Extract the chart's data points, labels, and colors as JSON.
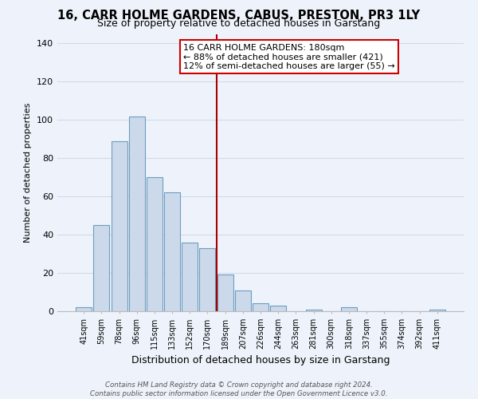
{
  "title": "16, CARR HOLME GARDENS, CABUS, PRESTON, PR3 1LY",
  "subtitle": "Size of property relative to detached houses in Garstang",
  "xlabel": "Distribution of detached houses by size in Garstang",
  "ylabel": "Number of detached properties",
  "bar_labels": [
    "41sqm",
    "59sqm",
    "78sqm",
    "96sqm",
    "115sqm",
    "133sqm",
    "152sqm",
    "170sqm",
    "189sqm",
    "207sqm",
    "226sqm",
    "244sqm",
    "263sqm",
    "281sqm",
    "300sqm",
    "318sqm",
    "337sqm",
    "355sqm",
    "374sqm",
    "392sqm",
    "411sqm"
  ],
  "bar_values": [
    2,
    45,
    89,
    102,
    70,
    62,
    36,
    33,
    19,
    11,
    4,
    3,
    0,
    1,
    0,
    2,
    0,
    0,
    0,
    0,
    1
  ],
  "bar_color": "#ccd9ea",
  "bar_edge_color": "#6e9dc0",
  "vline_color": "#aa0000",
  "annotation_title": "16 CARR HOLME GARDENS: 180sqm",
  "annotation_line1": "← 88% of detached houses are smaller (421)",
  "annotation_line2": "12% of semi-detached houses are larger (55) →",
  "annotation_box_color": "#ffffff",
  "annotation_box_edge": "#cc0000",
  "ylim": [
    0,
    145
  ],
  "yticks": [
    0,
    20,
    40,
    60,
    80,
    100,
    120,
    140
  ],
  "footer1": "Contains HM Land Registry data © Crown copyright and database right 2024.",
  "footer2": "Contains public sector information licensed under the Open Government Licence v3.0.",
  "bg_color": "#eef3fb",
  "grid_color": "#d0daea",
  "title_fontsize": 10.5,
  "subtitle_fontsize": 9,
  "ylabel_fontsize": 8,
  "xlabel_fontsize": 9
}
